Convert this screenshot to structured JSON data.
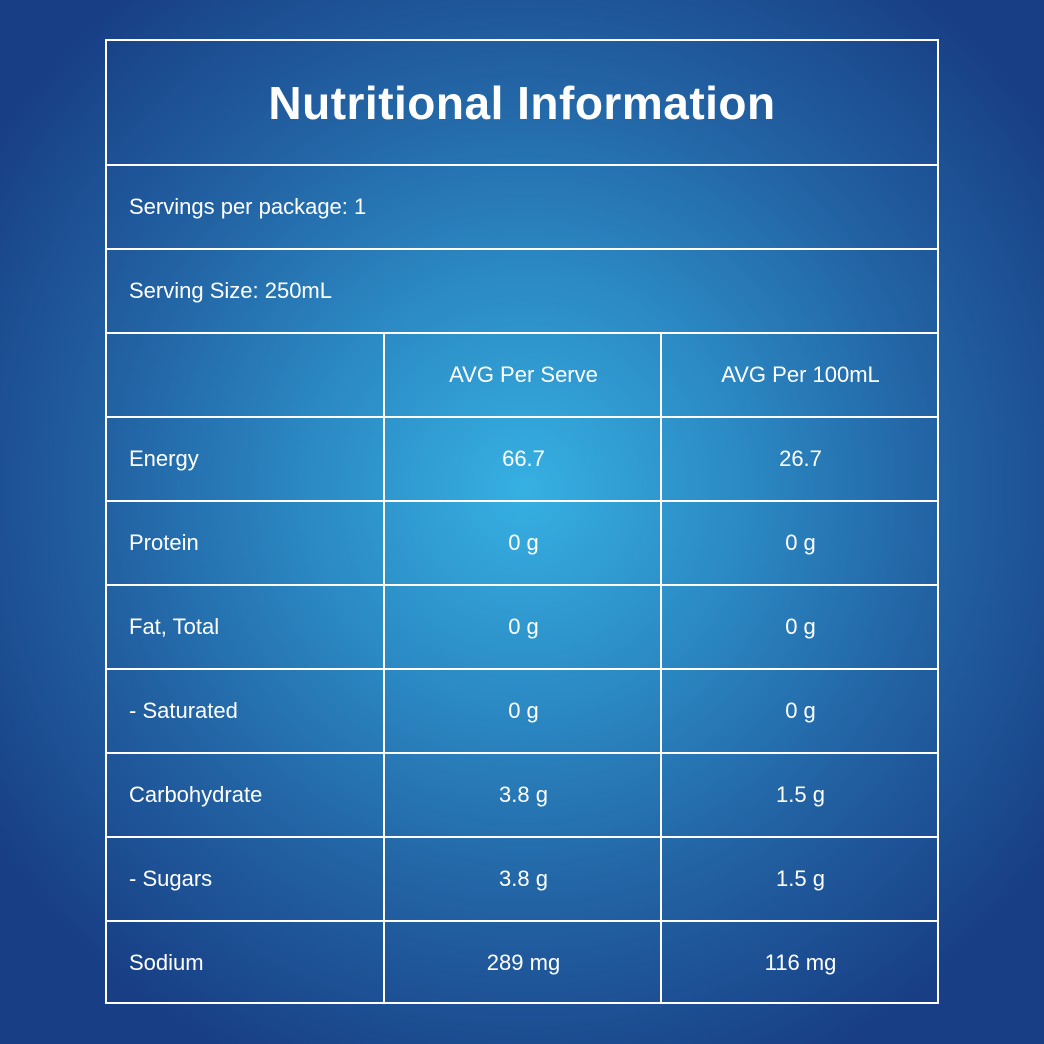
{
  "title": "Nutritional Information",
  "servings_per_package": "Servings per package: 1",
  "serving_size": "Serving Size: 250mL",
  "columns": [
    "",
    "AVG Per Serve",
    "AVG Per 100mL"
  ],
  "rows": [
    {
      "name": "Energy",
      "per_serve": "66.7",
      "per_100ml": "26.7"
    },
    {
      "name": "Protein",
      "per_serve": "0 g",
      "per_100ml": "0 g"
    },
    {
      "name": "Fat, Total",
      "per_serve": "0 g",
      "per_100ml": "0 g"
    },
    {
      "name": "- Saturated",
      "per_serve": "0 g",
      "per_100ml": "0 g"
    },
    {
      "name": "Carbohydrate",
      "per_serve": "3.8 g",
      "per_100ml": "1.5 g"
    },
    {
      "name": "- Sugars",
      "per_serve": "3.8 g",
      "per_100ml": "1.5 g"
    },
    {
      "name": "Sodium",
      "per_serve": "289 mg",
      "per_100ml": "116 mg"
    }
  ]
}
